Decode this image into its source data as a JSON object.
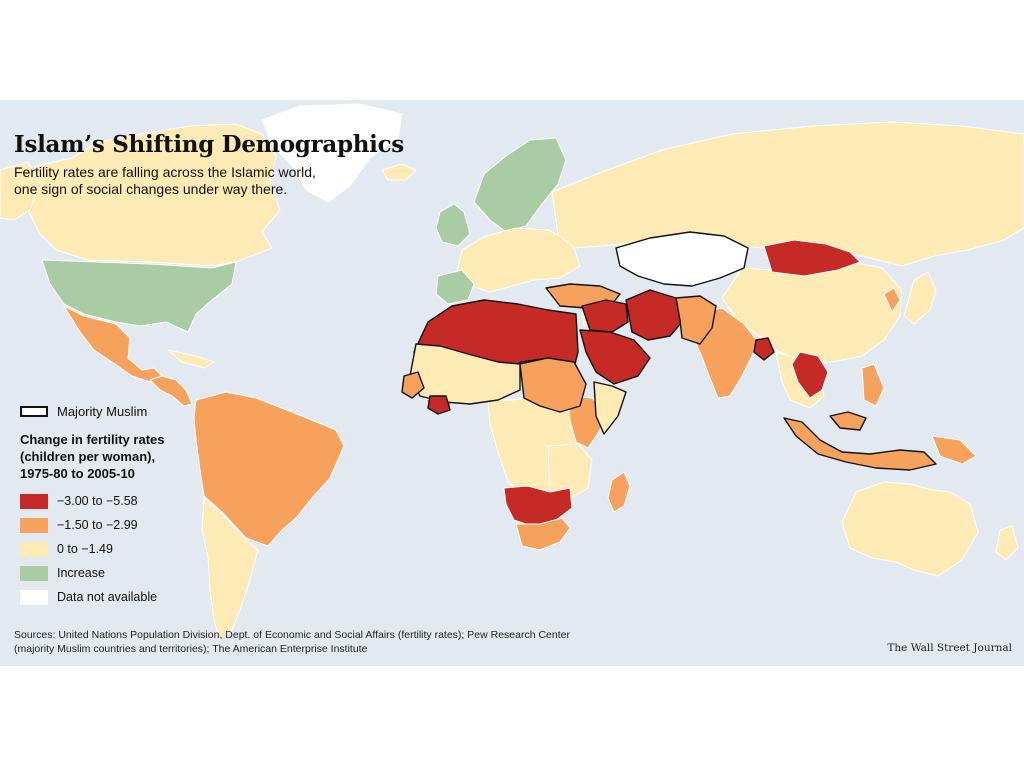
{
  "title": "Islam’s Shifting Demographics",
  "subtitle": {
    "line1": "Fertility rates are falling across the Islamic world,",
    "line2": "one sign of social changes under way there."
  },
  "legend": {
    "outline_label": "Majority Muslim",
    "heading_line1": "Change in fertility rates",
    "heading_line2": "(children per woman),",
    "heading_line3": "1975-80 to 2005-10",
    "items": [
      {
        "key": "high",
        "label": "−3.00 to −5.58",
        "color": "#c62a26"
      },
      {
        "key": "mid",
        "label": "−1.50 to −2.99",
        "color": "#f6a25c"
      },
      {
        "key": "low",
        "label": "0 to −1.49",
        "color": "#fdeab4"
      },
      {
        "key": "increase",
        "label": "Increase",
        "color": "#a9cca4"
      },
      {
        "key": "na",
        "label": "Data not available",
        "color": "#ffffff"
      }
    ]
  },
  "sources": {
    "line1": "Sources: United Nations Population Division, Dept. of Economic and Social Affairs (fertility rates); Pew Research Center",
    "line2": "(majority Muslim countries and territories); The American Enterprise Institute"
  },
  "credit": "The Wall Street Journal",
  "colors": {
    "ocean": "#e3e9f0",
    "outline": "#111111"
  }
}
